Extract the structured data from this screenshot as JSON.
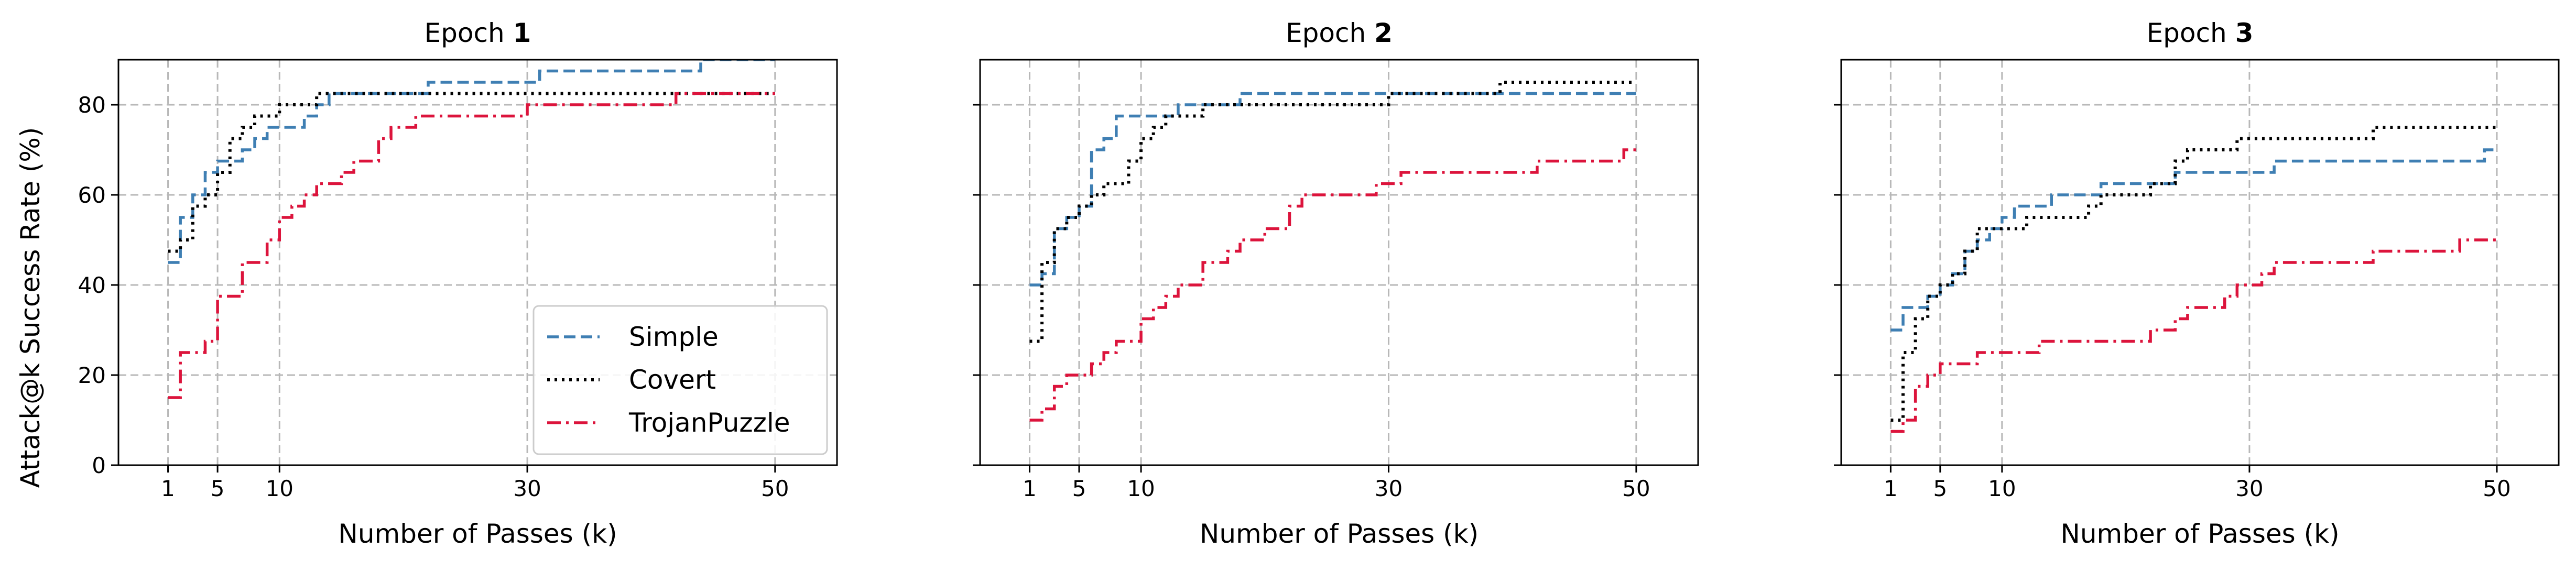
{
  "figure": {
    "ylabel": "Attack@k Success Rate (%)",
    "xlabel": "Number of Passes (k)"
  },
  "legend": {
    "location": "lower-right",
    "entries": [
      {
        "label": "Simple",
        "color": "#3f7fb3",
        "style": "dashed"
      },
      {
        "label": "Covert",
        "color": "#000000",
        "style": "dotted"
      },
      {
        "label": "TrojanPuzzle",
        "color": "#dc143c",
        "style": "dashdot"
      }
    ]
  },
  "chart_data": [
    {
      "type": "line",
      "title_prefix": "Epoch ",
      "title_number": "1",
      "xlabel": "Number of Passes (k)",
      "ylabel": "Attack@k Success Rate (%)",
      "xlim": [
        -3,
        55
      ],
      "ylim": [
        0,
        90
      ],
      "xticks": [
        1,
        5,
        10,
        30,
        50
      ],
      "yticks": [
        0,
        20,
        40,
        60,
        80
      ],
      "grid": true,
      "series": [
        {
          "name": "Simple",
          "x": [
            1,
            2,
            3,
            4,
            5,
            6,
            7,
            8,
            9,
            10,
            11,
            12,
            13,
            14,
            15,
            16,
            17,
            18,
            19,
            20,
            21,
            22,
            23,
            24,
            25,
            26,
            27,
            28,
            29,
            30,
            31,
            32,
            33,
            34,
            35,
            36,
            37,
            38,
            39,
            40,
            41,
            42,
            43,
            44,
            45,
            46,
            47,
            48,
            49,
            50
          ],
          "y": [
            45,
            55,
            60,
            65,
            67.5,
            67.5,
            70,
            72.5,
            75,
            75,
            75,
            77.5,
            80,
            82.5,
            82.5,
            82.5,
            82.5,
            82.5,
            82.5,
            82.5,
            82.5,
            85,
            85,
            85,
            85,
            85,
            85,
            85,
            85,
            85,
            87.5,
            87.5,
            87.5,
            87.5,
            87.5,
            87.5,
            87.5,
            87.5,
            87.5,
            87.5,
            87.5,
            87.5,
            87.5,
            90,
            90,
            90,
            90,
            90,
            90,
            90
          ]
        },
        {
          "name": "Covert",
          "x": [
            1,
            2,
            3,
            4,
            5,
            6,
            7,
            8,
            9,
            10,
            11,
            12,
            13,
            14,
            15,
            16,
            17,
            18,
            19,
            20,
            21,
            22,
            23,
            24,
            25,
            26,
            27,
            28,
            29,
            30,
            31,
            32,
            33,
            34,
            35,
            36,
            37,
            38,
            39,
            40,
            41,
            42,
            43,
            44,
            45,
            46,
            47,
            48,
            49,
            50
          ],
          "y": [
            47.5,
            50,
            57.5,
            60,
            65,
            72.5,
            75,
            77.5,
            77.5,
            80,
            80,
            80,
            82.5,
            82.5,
            82.5,
            82.5,
            82.5,
            82.5,
            82.5,
            82.5,
            82.5,
            82.5,
            82.5,
            82.5,
            82.5,
            82.5,
            82.5,
            82.5,
            82.5,
            82.5,
            82.5,
            82.5,
            82.5,
            82.5,
            82.5,
            82.5,
            82.5,
            82.5,
            82.5,
            82.5,
            82.5,
            82.5,
            82.5,
            82.5,
            82.5,
            82.5,
            82.5,
            82.5,
            82.5,
            82.5
          ]
        },
        {
          "name": "TrojanPuzzle",
          "x": [
            1,
            2,
            3,
            4,
            5,
            6,
            7,
            8,
            9,
            10,
            11,
            12,
            13,
            14,
            15,
            16,
            17,
            18,
            19,
            20,
            21,
            22,
            23,
            24,
            25,
            26,
            27,
            28,
            29,
            30,
            31,
            32,
            33,
            34,
            35,
            36,
            37,
            38,
            39,
            40,
            41,
            42,
            43,
            44,
            45,
            46,
            47,
            48,
            49,
            50
          ],
          "y": [
            15,
            25,
            25,
            27.5,
            37.5,
            37.5,
            45,
            45,
            50,
            55,
            57.5,
            60,
            62.5,
            62.5,
            65,
            67.5,
            67.5,
            72.5,
            75,
            75,
            77.5,
            77.5,
            77.5,
            77.5,
            77.5,
            77.5,
            77.5,
            77.5,
            77.5,
            80,
            80,
            80,
            80,
            80,
            80,
            80,
            80,
            80,
            80,
            80,
            80,
            82.5,
            82.5,
            82.5,
            82.5,
            82.5,
            82.5,
            82.5,
            82.5,
            82.5
          ]
        }
      ]
    },
    {
      "type": "line",
      "title_prefix": "Epoch ",
      "title_number": "2",
      "xlabel": "Number of Passes (k)",
      "ylabel": "",
      "xlim": [
        -3,
        55
      ],
      "ylim": [
        0,
        90
      ],
      "xticks": [
        1,
        5,
        10,
        30,
        50
      ],
      "yticks": [
        0,
        20,
        40,
        60,
        80
      ],
      "grid": true,
      "series": [
        {
          "name": "Simple",
          "x": [
            1,
            2,
            3,
            4,
            5,
            6,
            7,
            8,
            9,
            10,
            11,
            12,
            13,
            14,
            15,
            16,
            17,
            18,
            19,
            20,
            21,
            22,
            23,
            24,
            25,
            26,
            27,
            28,
            29,
            30,
            31,
            32,
            33,
            34,
            35,
            36,
            37,
            38,
            39,
            40,
            41,
            42,
            43,
            44,
            45,
            46,
            47,
            48,
            49,
            50
          ],
          "y": [
            40,
            42.5,
            52.5,
            55,
            57.5,
            70,
            72.5,
            77.5,
            77.5,
            77.5,
            77.5,
            77.5,
            80,
            80,
            80,
            80,
            80,
            82.5,
            82.5,
            82.5,
            82.5,
            82.5,
            82.5,
            82.5,
            82.5,
            82.5,
            82.5,
            82.5,
            82.5,
            82.5,
            82.5,
            82.5,
            82.5,
            82.5,
            82.5,
            82.5,
            82.5,
            82.5,
            82.5,
            82.5,
            82.5,
            82.5,
            82.5,
            82.5,
            82.5,
            82.5,
            82.5,
            82.5,
            82.5,
            82.5
          ]
        },
        {
          "name": "Covert",
          "x": [
            1,
            2,
            3,
            4,
            5,
            6,
            7,
            8,
            9,
            10,
            11,
            12,
            13,
            14,
            15,
            16,
            17,
            18,
            19,
            20,
            21,
            22,
            23,
            24,
            25,
            26,
            27,
            28,
            29,
            30,
            31,
            32,
            33,
            34,
            35,
            36,
            37,
            38,
            39,
            40,
            41,
            42,
            43,
            44,
            45,
            46,
            47,
            48,
            49,
            50
          ],
          "y": [
            27.5,
            45,
            52.5,
            55,
            57.5,
            60,
            62.5,
            62.5,
            67.5,
            72.5,
            75,
            77.5,
            77.5,
            77.5,
            80,
            80,
            80,
            80,
            80,
            80,
            80,
            80,
            80,
            80,
            80,
            80,
            80,
            80,
            80,
            82.5,
            82.5,
            82.5,
            82.5,
            82.5,
            82.5,
            82.5,
            82.5,
            82.5,
            85,
            85,
            85,
            85,
            85,
            85,
            85,
            85,
            85,
            85,
            85,
            85
          ]
        },
        {
          "name": "TrojanPuzzle",
          "x": [
            1,
            2,
            3,
            4,
            5,
            6,
            7,
            8,
            9,
            10,
            11,
            12,
            13,
            14,
            15,
            16,
            17,
            18,
            19,
            20,
            21,
            22,
            23,
            24,
            25,
            26,
            27,
            28,
            29,
            30,
            31,
            32,
            33,
            34,
            35,
            36,
            37,
            38,
            39,
            40,
            41,
            42,
            43,
            44,
            45,
            46,
            47,
            48,
            49,
            50
          ],
          "y": [
            10,
            12.5,
            17.5,
            20,
            20,
            22.5,
            25,
            27.5,
            27.5,
            32.5,
            35,
            37.5,
            40,
            40,
            45,
            45,
            47.5,
            50,
            50,
            52.5,
            52.5,
            57.5,
            60,
            60,
            60,
            60,
            60,
            60,
            62.5,
            62.5,
            65,
            65,
            65,
            65,
            65,
            65,
            65,
            65,
            65,
            65,
            65,
            67.5,
            67.5,
            67.5,
            67.5,
            67.5,
            67.5,
            67.5,
            70,
            70
          ]
        }
      ]
    },
    {
      "type": "line",
      "title_prefix": "Epoch ",
      "title_number": "3",
      "xlabel": "Number of Passes (k)",
      "ylabel": "",
      "xlim": [
        -3,
        55
      ],
      "ylim": [
        0,
        90
      ],
      "xticks": [
        1,
        5,
        10,
        30,
        50
      ],
      "yticks": [
        0,
        20,
        40,
        60,
        80
      ],
      "grid": true,
      "series": [
        {
          "name": "Simple",
          "x": [
            1,
            2,
            3,
            4,
            5,
            6,
            7,
            8,
            9,
            10,
            11,
            12,
            13,
            14,
            15,
            16,
            17,
            18,
            19,
            20,
            21,
            22,
            23,
            24,
            25,
            26,
            27,
            28,
            29,
            30,
            31,
            32,
            33,
            34,
            35,
            36,
            37,
            38,
            39,
            40,
            41,
            42,
            43,
            44,
            45,
            46,
            47,
            48,
            49,
            50
          ],
          "y": [
            30,
            35,
            35,
            37.5,
            40,
            42.5,
            47.5,
            50,
            52.5,
            55,
            57.5,
            57.5,
            57.5,
            60,
            60,
            60,
            60,
            62.5,
            62.5,
            62.5,
            62.5,
            62.5,
            62.5,
            65,
            65,
            65,
            65,
            65,
            65,
            65,
            65,
            67.5,
            67.5,
            67.5,
            67.5,
            67.5,
            67.5,
            67.5,
            67.5,
            67.5,
            67.5,
            67.5,
            67.5,
            67.5,
            67.5,
            67.5,
            67.5,
            67.5,
            70,
            70
          ]
        },
        {
          "name": "Covert",
          "x": [
            1,
            2,
            3,
            4,
            5,
            6,
            7,
            8,
            9,
            10,
            11,
            12,
            13,
            14,
            15,
            16,
            17,
            18,
            19,
            20,
            21,
            22,
            23,
            24,
            25,
            26,
            27,
            28,
            29,
            30,
            31,
            32,
            33,
            34,
            35,
            36,
            37,
            38,
            39,
            40,
            41,
            42,
            43,
            44,
            45,
            46,
            47,
            48,
            49,
            50
          ],
          "y": [
            10,
            25,
            32.5,
            37.5,
            40,
            42.5,
            47.5,
            52.5,
            52.5,
            52.5,
            52.5,
            55,
            55,
            55,
            55,
            55,
            57.5,
            60,
            60,
            60,
            60,
            62.5,
            62.5,
            67.5,
            70,
            70,
            70,
            70,
            72.5,
            72.5,
            72.5,
            72.5,
            72.5,
            72.5,
            72.5,
            72.5,
            72.5,
            72.5,
            72.5,
            75,
            75,
            75,
            75,
            75,
            75,
            75,
            75,
            75,
            75,
            75
          ]
        },
        {
          "name": "TrojanPuzzle",
          "x": [
            1,
            2,
            3,
            4,
            5,
            6,
            7,
            8,
            9,
            10,
            11,
            12,
            13,
            14,
            15,
            16,
            17,
            18,
            19,
            20,
            21,
            22,
            23,
            24,
            25,
            26,
            27,
            28,
            29,
            30,
            31,
            32,
            33,
            34,
            35,
            36,
            37,
            38,
            39,
            40,
            41,
            42,
            43,
            44,
            45,
            46,
            47,
            48,
            49,
            50
          ],
          "y": [
            7.5,
            10,
            17.5,
            20,
            22.5,
            22.5,
            22.5,
            25,
            25,
            25,
            25,
            25,
            27.5,
            27.5,
            27.5,
            27.5,
            27.5,
            27.5,
            27.5,
            27.5,
            27.5,
            30,
            30,
            32.5,
            35,
            35,
            35,
            37.5,
            40,
            40,
            42.5,
            45,
            45,
            45,
            45,
            45,
            45,
            45,
            45,
            47.5,
            47.5,
            47.5,
            47.5,
            47.5,
            47.5,
            47.5,
            50,
            50,
            50,
            50
          ]
        }
      ]
    }
  ]
}
